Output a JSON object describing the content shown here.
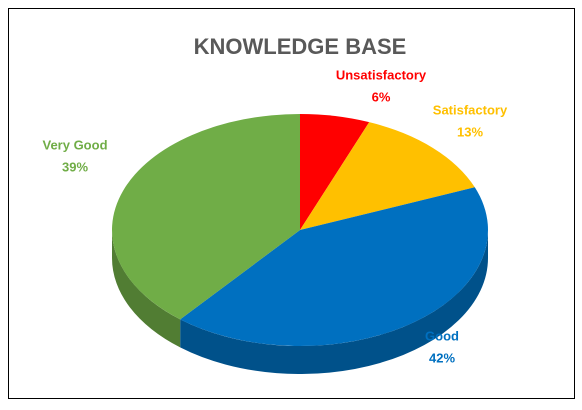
{
  "chart_data": {
    "type": "pie",
    "title": "KNOWLEDGE BASE",
    "categories": [
      "Unsatisfactory",
      "Satisfactory",
      "Good",
      "Very Good"
    ],
    "values": [
      6,
      13,
      42,
      39
    ],
    "value_labels": [
      "6%",
      "13%",
      "42%",
      "39%"
    ],
    "colors": [
      "#ff0000",
      "#ffc000",
      "#0070c0",
      "#70ad47"
    ]
  }
}
